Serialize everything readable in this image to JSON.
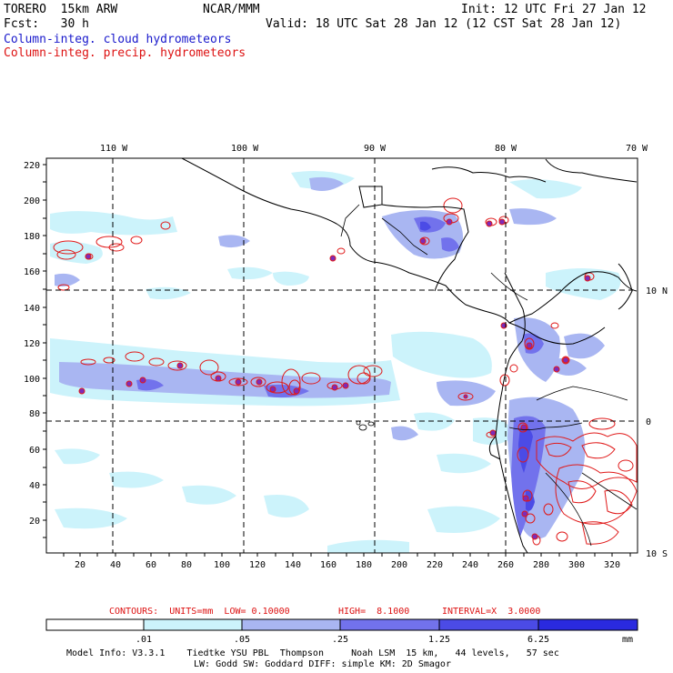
{
  "header": {
    "model": "TORERO  15km ARW",
    "org": "NCAR/MMM",
    "init": "Init: 12 UTC Fri 27 Jan 12",
    "fcst": "Fcst:   30 h",
    "valid": "Valid: 18 UTC Sat 28 Jan 12 (12 CST Sat 28 Jan 12)",
    "field1": "Column-integ. cloud hydrometeors",
    "field2": "Column-integ. precip. hydrometeors"
  },
  "map": {
    "lon_labels": [
      "110 W",
      "100 W",
      "90 W",
      "80 W",
      "70 W"
    ],
    "lat_labels": [
      "10 N",
      "0",
      "10 S"
    ],
    "y_ticks": [
      "220",
      "200",
      "180",
      "160",
      "140",
      "120",
      "100",
      "80",
      "60",
      "40",
      "20"
    ],
    "x_ticks": [
      "20",
      "40",
      "60",
      "80",
      "100",
      "120",
      "140",
      "160",
      "180",
      "200",
      "220",
      "240",
      "260",
      "280",
      "300",
      "320"
    ]
  },
  "contour_info": {
    "units": "CONTOURS:  UNITS=mm  LOW= 0.10000",
    "high": "HIGH=  8.1000",
    "interval": "INTERVAL=X  3.0000"
  },
  "colorbar": {
    "labels": [
      ".01",
      ".05",
      ".25",
      "1.25",
      "6.25"
    ],
    "unit": "mm",
    "colors": [
      "#ffffff",
      "#ccf3fb",
      "#a9b6f2",
      "#7272ec",
      "#4b4be6",
      "#2a2adf"
    ]
  },
  "footer": {
    "line1": "Model Info: V3.3.1    Tiedtke YSU PBL  Thompson     Noah LSM  15 km,   44 levels,   57 sec",
    "line2": "LW: Godd SW: Goddard DIFF: simple KM: 2D Smagor"
  }
}
